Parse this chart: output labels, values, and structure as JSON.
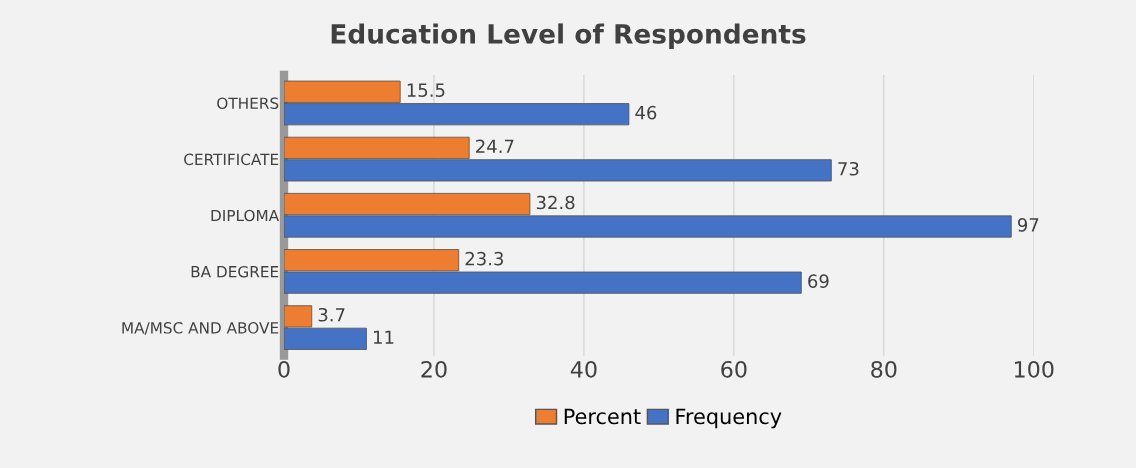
{
  "chart_data": {
    "type": "bar",
    "orientation": "horizontal",
    "title": "Education Level of Respondents",
    "categories": [
      "OTHERS",
      "CERTIFICATE",
      "DIPLOMA",
      "BA DEGREE",
      "MA/MSC AND ABOVE"
    ],
    "series": [
      {
        "name": "Percent",
        "color": "#ed7d31",
        "values": [
          15.5,
          24.7,
          32.8,
          23.3,
          3.7
        ]
      },
      {
        "name": "Frequency",
        "color": "#4472c4",
        "values": [
          46,
          73,
          97,
          69,
          11
        ]
      }
    ],
    "xlim": [
      0,
      100
    ],
    "xticks": [
      0,
      20,
      40,
      60,
      80,
      100
    ],
    "grid": "x",
    "legend": "bottom",
    "data_labels": true
  }
}
